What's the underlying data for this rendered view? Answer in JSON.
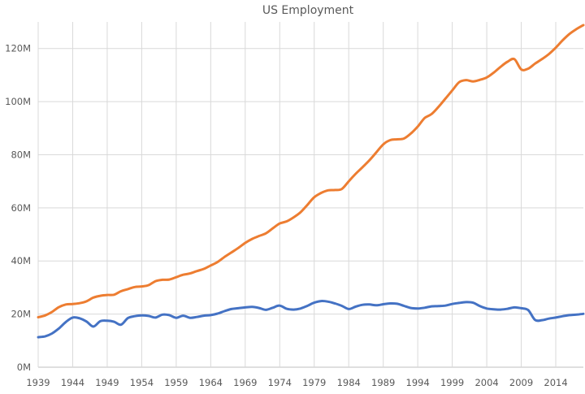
{
  "chart_data": {
    "type": "line",
    "title": "US Employment",
    "xlabel": "",
    "ylabel": "",
    "x": [
      1939,
      1940,
      1941,
      1942,
      1943,
      1944,
      1945,
      1946,
      1947,
      1948,
      1949,
      1950,
      1951,
      1952,
      1953,
      1954,
      1955,
      1956,
      1957,
      1958,
      1959,
      1960,
      1961,
      1962,
      1963,
      1964,
      1965,
      1966,
      1967,
      1968,
      1969,
      1970,
      1971,
      1972,
      1973,
      1974,
      1975,
      1976,
      1977,
      1978,
      1979,
      1980,
      1981,
      1982,
      1983,
      1984,
      1985,
      1986,
      1987,
      1988,
      1989,
      1990,
      1991,
      1992,
      1993,
      1994,
      1995,
      1996,
      1997,
      1998,
      1999,
      2000,
      2001,
      2002,
      2003,
      2004,
      2005,
      2006,
      2007,
      2008,
      2009,
      2010,
      2011,
      2012,
      2013,
      2014,
      2015,
      2016,
      2017,
      2018
    ],
    "x_ticks": [
      "1939",
      "1944",
      "1949",
      "1954",
      "1959",
      "1964",
      "1969",
      "1974",
      "1979",
      "1984",
      "1989",
      "1994",
      "1999",
      "2004",
      "2009",
      "2014"
    ],
    "y_ticks": [
      0,
      20,
      40,
      60,
      80,
      100,
      120
    ],
    "y_tick_labels": [
      "0M",
      "20M",
      "40M",
      "60M",
      "80M",
      "100M",
      "120M"
    ],
    "ylim": [
      0,
      130
    ],
    "grid": true,
    "series": [
      {
        "color": "#ED7D31",
        "values": [
          18.8,
          19.5,
          20.8,
          22.6,
          23.6,
          23.8,
          24.1,
          24.8,
          26.2,
          26.9,
          27.2,
          27.3,
          28.6,
          29.4,
          30.2,
          30.4,
          30.9,
          32.4,
          32.9,
          33.0,
          33.9,
          34.8,
          35.3,
          36.2,
          37.0,
          38.3,
          39.6,
          41.5,
          43.2,
          44.9,
          46.8,
          48.3,
          49.4,
          50.4,
          52.3,
          54.1,
          54.9,
          56.4,
          58.3,
          61.1,
          64.0,
          65.6,
          66.6,
          66.7,
          67.1,
          70.0,
          72.8,
          75.3,
          77.9,
          80.9,
          83.9,
          85.5,
          85.8,
          86.1,
          88.0,
          90.6,
          93.8,
          95.3,
          98.0,
          101.1,
          104.2,
          107.3,
          108.1,
          107.6,
          108.2,
          109.1,
          110.9,
          113.1,
          115.0,
          116.0,
          112.1,
          112.4,
          114.3,
          116.0,
          117.9,
          120.3,
          123.1,
          125.5,
          127.3,
          128.8
        ]
      },
      {
        "color": "#4472C4",
        "values": [
          11.3,
          11.6,
          12.7,
          14.6,
          17.0,
          18.7,
          18.4,
          17.2,
          15.3,
          17.3,
          17.5,
          17.1,
          16.0,
          18.5,
          19.2,
          19.5,
          19.3,
          18.7,
          19.8,
          19.6,
          18.6,
          19.4,
          18.6,
          18.9,
          19.4,
          19.6,
          20.2,
          21.1,
          21.9,
          22.2,
          22.5,
          22.7,
          22.3,
          21.6,
          22.4,
          23.2,
          22.0,
          21.7,
          22.1,
          23.1,
          24.3,
          24.9,
          24.7,
          24.0,
          23.1,
          21.9,
          22.8,
          23.5,
          23.6,
          23.3,
          23.7,
          24.0,
          23.9,
          23.1,
          22.3,
          22.1,
          22.4,
          22.9,
          23.0,
          23.2,
          23.8,
          24.2,
          24.5,
          24.3,
          23.0,
          22.1,
          21.8,
          21.7,
          22.0,
          22.5,
          22.2,
          21.5,
          17.8,
          17.7,
          18.3,
          18.7,
          19.2,
          19.6,
          19.8,
          20.1
        ]
      }
    ]
  }
}
